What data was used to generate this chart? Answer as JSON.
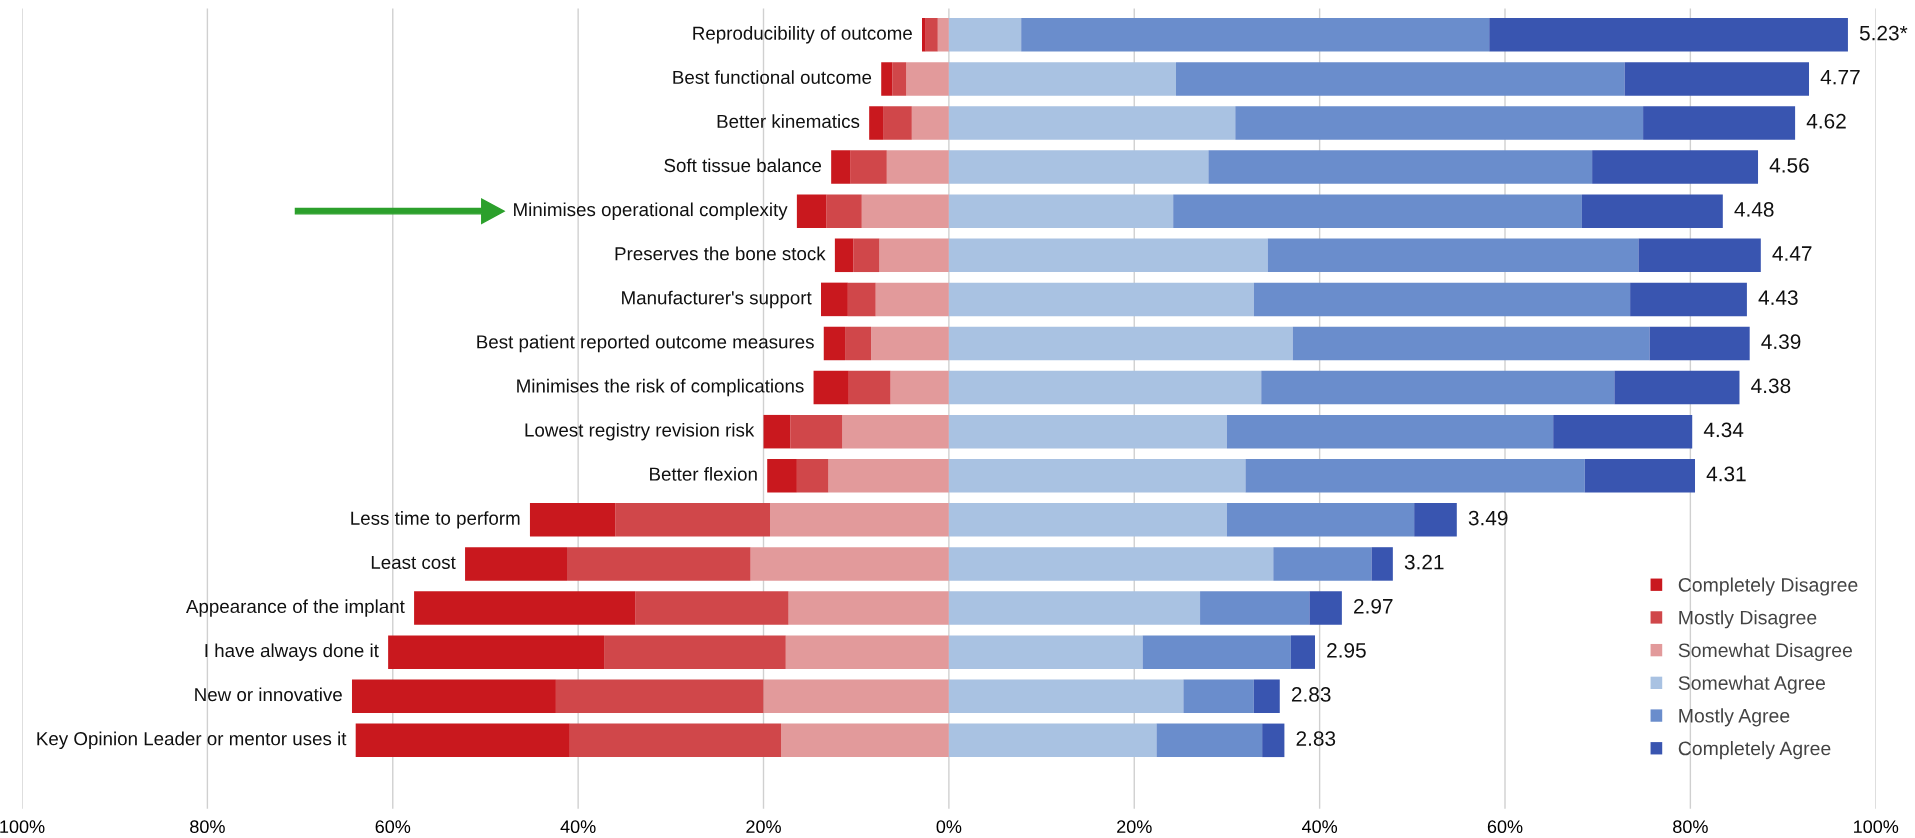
{
  "chart_data": {
    "type": "bar",
    "orientation": "horizontal",
    "stacked": true,
    "categories": [
      "Reproducibility of outcome",
      "Best functional outcome",
      "Better kinematics",
      "Soft tissue balance",
      "Minimises operational complexity",
      "Preserves the bone stock",
      "Manufacturer's support",
      "Best patient reported outcome measures",
      "Minimises the risk of complications",
      "Lowest registry revision risk",
      "Better flexion",
      "Less time to perform",
      "Least cost",
      "Appearance of the implant",
      "I have always done it",
      "New or innovative",
      "Key Opinion Leader or mentor uses it"
    ],
    "series": [
      {
        "name": "Somewhat Disagree",
        "color": "#e29a9b",
        "values": [
          -1.2,
          -4.6,
          -4.0,
          -6.7,
          -9.4,
          -7.5,
          -7.9,
          -8.4,
          -6.3,
          -11.5,
          -13.0,
          -19.3,
          -21.4,
          -17.3,
          -17.6,
          -20.0,
          -18.1
        ]
      },
      {
        "name": "Mostly Disagree",
        "color": "#d0474a",
        "values": [
          -1.3,
          -1.5,
          -3.1,
          -3.9,
          -3.8,
          -2.8,
          -3.0,
          -2.8,
          -4.5,
          -5.6,
          -3.4,
          -16.7,
          -19.8,
          -16.5,
          -19.6,
          -22.4,
          -22.8
        ]
      },
      {
        "name": "Completely Disagree",
        "color": "#c9181e",
        "values": [
          -0.4,
          -1.2,
          -1.5,
          -2.1,
          -3.2,
          -2.0,
          -2.9,
          -2.3,
          -3.8,
          -2.9,
          -3.2,
          -9.2,
          -11.0,
          -23.9,
          -23.3,
          -22.0,
          -23.1
        ]
      },
      {
        "name": "Somewhat Agree",
        "color": "#a9c2e2",
        "values": [
          7.8,
          24.5,
          30.9,
          28.0,
          24.2,
          34.4,
          32.9,
          37.1,
          33.7,
          30.0,
          32.0,
          30.0,
          35.0,
          27.1,
          20.9,
          25.3,
          22.4
        ]
      },
      {
        "name": "Mostly Agree",
        "color": "#6a8dcc",
        "values": [
          50.5,
          48.4,
          44.0,
          41.4,
          44.1,
          40.0,
          40.6,
          38.5,
          38.1,
          35.2,
          36.6,
          20.2,
          10.6,
          11.8,
          16.0,
          7.6,
          11.4
        ]
      },
      {
        "name": "Completely Agree",
        "color": "#3955b0",
        "values": [
          38.7,
          19.9,
          16.4,
          17.9,
          15.2,
          13.2,
          12.6,
          10.8,
          13.5,
          15.0,
          11.9,
          4.6,
          2.3,
          3.5,
          2.6,
          2.8,
          2.4
        ]
      }
    ],
    "xlim": [
      -100,
      100
    ],
    "xticks": [
      {
        "value": -100,
        "label": "100%"
      },
      {
        "value": -80,
        "label": "80%"
      },
      {
        "value": -60,
        "label": "60%"
      },
      {
        "value": -40,
        "label": "40%"
      },
      {
        "value": -20,
        "label": "20%"
      },
      {
        "value": 0,
        "label": "0%"
      },
      {
        "value": 20,
        "label": "20%"
      },
      {
        "value": 40,
        "label": "40%"
      },
      {
        "value": 60,
        "label": "60%"
      },
      {
        "value": 80,
        "label": "80%"
      },
      {
        "value": 100,
        "label": "100%"
      }
    ],
    "grid": "x",
    "legend": "bottom right",
    "tick_labels": "x",
    "annotations": [
      {
        "text": "5.23*",
        "x": 97.0,
        "y": "Reproducibility of outcome"
      },
      {
        "text": "4.77",
        "x": 92.8,
        "y": "Best functional outcome"
      },
      {
        "text": "4.62",
        "x": 91.3,
        "y": "Better kinematics"
      },
      {
        "text": "4.56",
        "x": 87.3,
        "y": "Soft tissue balance"
      },
      {
        "text": "4.48",
        "x": 83.5,
        "y": "Minimises operational complexity"
      },
      {
        "text": "4.47",
        "x": 87.6,
        "y": "Preserves the bone stock"
      },
      {
        "text": "4.43",
        "x": 86.1,
        "y": "Manufacturer's support"
      },
      {
        "text": "4.39",
        "x": 86.4,
        "y": "Best patient reported outcome measures"
      },
      {
        "text": "4.38",
        "x": 85.3,
        "y": "Minimises the risk of complications"
      },
      {
        "text": "4.34",
        "x": 80.2,
        "y": "Lowest registry revision risk"
      },
      {
        "text": "4.31",
        "x": 80.5,
        "y": "Better flexion"
      },
      {
        "text": "3.49",
        "x": 54.8,
        "y": "Less time to perform"
      },
      {
        "text": "3.21",
        "x": 47.9,
        "y": "Least cost"
      },
      {
        "text": "2.97",
        "x": 42.4,
        "y": "Appearance of the implant"
      },
      {
        "text": "2.95",
        "x": 39.5,
        "y": "I have always done it"
      },
      {
        "text": "2.83",
        "x": 35.7,
        "y": "New or innovative"
      },
      {
        "text": "2.83",
        "x": 36.2,
        "y": "Key Opinion Leader or mentor uses it"
      }
    ]
  }
}
